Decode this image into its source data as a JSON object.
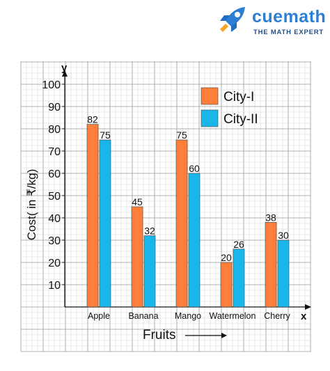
{
  "brand": {
    "name": "cuemath",
    "tagline": "THE MATH EXPERT",
    "icon": "rocket-icon",
    "colors": {
      "primary": "#2d7fd3",
      "accent": "#f6a623",
      "dark": "#1f4e8c"
    }
  },
  "chart_data": {
    "type": "bar",
    "categories": [
      "Apple",
      "Banana",
      "Mango",
      "Watermelon",
      "Cherry"
    ],
    "series": [
      {
        "name": "City-I",
        "values": [
          82,
          45,
          75,
          20,
          38
        ],
        "color": "#ff7f3a"
      },
      {
        "name": "City-II",
        "values": [
          75,
          32,
          60,
          26,
          30
        ],
        "color": "#19b6ea"
      }
    ],
    "title": "",
    "xlabel": "Fruits",
    "ylabel": "Cost( in ₹/kg)",
    "x_axis_letter": "x",
    "y_axis_letter": "y",
    "ylim": [
      0,
      100
    ],
    "yticks": [
      10,
      20,
      30,
      40,
      50,
      60,
      70,
      80,
      90,
      100
    ],
    "grid": true,
    "legend_position": "top-right"
  }
}
